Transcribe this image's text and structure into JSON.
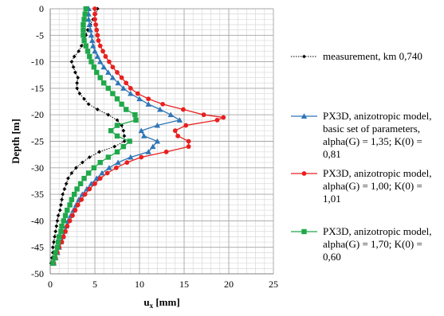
{
  "chart_data": {
    "type": "line",
    "xlabel": "u",
    "xlabel_sub": "x",
    "xlabel_unit": " [mm]",
    "ylabel": "Depth [m]",
    "xlim": [
      0,
      25
    ],
    "ylim": [
      -50,
      0
    ],
    "x_ticks": [
      0,
      5,
      10,
      15,
      20,
      25
    ],
    "y_ticks": [
      0,
      -5,
      -10,
      -15,
      -20,
      -25,
      -30,
      -35,
      -40,
      -45,
      -50
    ],
    "grid": true,
    "legend_position": "right",
    "series": [
      {
        "name": "measurement, km 0,740",
        "name_lines": [
          "measurement, km 0,740"
        ],
        "color": "#000000",
        "marker": "diamond",
        "dashed": true,
        "points": [
          [
            5.3,
            0
          ],
          [
            5.1,
            -1
          ],
          [
            4.8,
            -2
          ],
          [
            4.5,
            -3
          ],
          [
            4.2,
            -4
          ],
          [
            4.0,
            -5
          ],
          [
            3.8,
            -6
          ],
          [
            3.5,
            -7
          ],
          [
            3.2,
            -8
          ],
          [
            2.7,
            -9
          ],
          [
            2.4,
            -10
          ],
          [
            2.6,
            -11
          ],
          [
            2.8,
            -12
          ],
          [
            3.1,
            -13
          ],
          [
            3.0,
            -14
          ],
          [
            3.0,
            -15
          ],
          [
            3.3,
            -16
          ],
          [
            3.8,
            -17
          ],
          [
            4.3,
            -18
          ],
          [
            5.3,
            -19
          ],
          [
            6.5,
            -20
          ],
          [
            7.5,
            -21
          ],
          [
            8.0,
            -22
          ],
          [
            8.2,
            -23
          ],
          [
            8.3,
            -24
          ],
          [
            8.3,
            -25
          ],
          [
            7.2,
            -26
          ],
          [
            5.5,
            -27
          ],
          [
            4.4,
            -28
          ],
          [
            3.6,
            -29
          ],
          [
            2.9,
            -30
          ],
          [
            2.4,
            -31
          ],
          [
            2.0,
            -32
          ],
          [
            1.8,
            -33
          ],
          [
            1.6,
            -34
          ],
          [
            1.4,
            -35
          ],
          [
            1.3,
            -36
          ],
          [
            1.2,
            -37
          ],
          [
            1.1,
            -38
          ],
          [
            0.9,
            -39
          ],
          [
            0.8,
            -40
          ],
          [
            0.7,
            -41
          ],
          [
            0.6,
            -42
          ],
          [
            0.5,
            -43
          ],
          [
            0.4,
            -44
          ],
          [
            0.3,
            -45
          ],
          [
            0.3,
            -46
          ],
          [
            0.2,
            -47
          ],
          [
            0.1,
            -48
          ]
        ]
      },
      {
        "name": "PX3D, anizotropic model, basic set of parameters, alpha(G) = 1,35; K(0) = 0,81",
        "name_lines": [
          "PX3D, anizotropic model,",
          "basic set of parameters,",
          "alpha(G) = 1,35; K(0) =",
          "0,81"
        ],
        "color": "#2e75b6",
        "marker": "triangle",
        "dashed": false,
        "points": [
          [
            4.3,
            0
          ],
          [
            4.3,
            -1
          ],
          [
            4.3,
            -2
          ],
          [
            4.4,
            -3
          ],
          [
            4.5,
            -4
          ],
          [
            4.6,
            -5
          ],
          [
            4.7,
            -6
          ],
          [
            4.8,
            -7
          ],
          [
            5.0,
            -8
          ],
          [
            5.3,
            -9
          ],
          [
            5.6,
            -10
          ],
          [
            6.0,
            -11
          ],
          [
            6.5,
            -12
          ],
          [
            7.0,
            -13
          ],
          [
            7.6,
            -14
          ],
          [
            8.2,
            -15
          ],
          [
            9.0,
            -16
          ],
          [
            10.0,
            -17
          ],
          [
            11.0,
            -18
          ],
          [
            12.3,
            -19
          ],
          [
            13.5,
            -20
          ],
          [
            14.5,
            -21
          ],
          [
            12.0,
            -22
          ],
          [
            10.2,
            -23
          ],
          [
            10.5,
            -24
          ],
          [
            12.0,
            -25
          ],
          [
            11.5,
            -26
          ],
          [
            11.0,
            -27
          ],
          [
            9.0,
            -28
          ],
          [
            7.6,
            -29
          ],
          [
            6.6,
            -30
          ],
          [
            5.8,
            -31
          ],
          [
            5.2,
            -32
          ],
          [
            4.6,
            -33
          ],
          [
            4.1,
            -34
          ],
          [
            3.6,
            -35
          ],
          [
            3.2,
            -36
          ],
          [
            2.9,
            -37
          ],
          [
            2.6,
            -38
          ],
          [
            2.3,
            -39
          ],
          [
            2.0,
            -40
          ],
          [
            1.8,
            -41
          ],
          [
            1.6,
            -42
          ],
          [
            1.4,
            -43
          ],
          [
            1.2,
            -44
          ],
          [
            1.0,
            -45
          ],
          [
            0.8,
            -46
          ],
          [
            0.6,
            -47
          ],
          [
            0.4,
            -48
          ]
        ]
      },
      {
        "name": "PX3D, anizotropic model, alpha(G) = 1,00; K(0) = 1,01",
        "name_lines": [
          "PX3D, anizotropic model,",
          "alpha(G) = 1,00; K(0) =",
          "1,01"
        ],
        "color": "#e8201f",
        "marker": "circle",
        "dashed": false,
        "points": [
          [
            5.0,
            0
          ],
          [
            5.0,
            -1
          ],
          [
            5.0,
            -2
          ],
          [
            5.1,
            -3
          ],
          [
            5.2,
            -4
          ],
          [
            5.3,
            -5
          ],
          [
            5.4,
            -6
          ],
          [
            5.6,
            -7
          ],
          [
            5.9,
            -8
          ],
          [
            6.2,
            -9
          ],
          [
            6.6,
            -10
          ],
          [
            7.0,
            -11
          ],
          [
            7.5,
            -12
          ],
          [
            8.0,
            -13
          ],
          [
            8.5,
            -14
          ],
          [
            9.0,
            -15
          ],
          [
            9.8,
            -16
          ],
          [
            11.0,
            -17
          ],
          [
            12.6,
            -18
          ],
          [
            14.9,
            -19
          ],
          [
            17.2,
            -20
          ],
          [
            19.4,
            -20.5
          ],
          [
            18.7,
            -21
          ],
          [
            15.2,
            -22
          ],
          [
            14.0,
            -23
          ],
          [
            14.3,
            -24
          ],
          [
            15.5,
            -25
          ],
          [
            15.5,
            -26
          ],
          [
            13.0,
            -27
          ],
          [
            10.2,
            -28
          ],
          [
            8.6,
            -29
          ],
          [
            7.4,
            -30
          ],
          [
            6.4,
            -31
          ],
          [
            5.6,
            -32
          ],
          [
            5.0,
            -33
          ],
          [
            4.4,
            -34
          ],
          [
            3.9,
            -35
          ],
          [
            3.5,
            -36
          ],
          [
            3.1,
            -37
          ],
          [
            2.8,
            -38
          ],
          [
            2.5,
            -39
          ],
          [
            2.2,
            -40
          ],
          [
            1.9,
            -41
          ],
          [
            1.7,
            -42
          ],
          [
            1.5,
            -43
          ],
          [
            1.3,
            -44
          ],
          [
            1.0,
            -45
          ],
          [
            0.8,
            -46
          ],
          [
            0.6,
            -47
          ],
          [
            0.4,
            -48
          ]
        ]
      },
      {
        "name": "PX3D, anizotropic model, alpha(G) = 1,70; K(0) = 0,60",
        "name_lines": [
          "PX3D, anizotropic model,",
          "alpha(G) = 1,70; K(0) =",
          "0,60"
        ],
        "color": "#1fa84a",
        "marker": "square",
        "dashed": false,
        "points": [
          [
            4.0,
            0
          ],
          [
            3.9,
            -1
          ],
          [
            3.8,
            -2
          ],
          [
            3.7,
            -3
          ],
          [
            3.7,
            -4
          ],
          [
            3.7,
            -5
          ],
          [
            3.8,
            -6
          ],
          [
            4.0,
            -7
          ],
          [
            4.2,
            -8
          ],
          [
            4.4,
            -9
          ],
          [
            4.6,
            -10
          ],
          [
            4.9,
            -11
          ],
          [
            5.2,
            -12
          ],
          [
            5.6,
            -13
          ],
          [
            6.0,
            -14
          ],
          [
            6.5,
            -15
          ],
          [
            7.0,
            -16
          ],
          [
            7.5,
            -17
          ],
          [
            8.0,
            -18
          ],
          [
            8.5,
            -19
          ],
          [
            9.5,
            -20
          ],
          [
            9.6,
            -21
          ],
          [
            7.5,
            -22
          ],
          [
            6.8,
            -23
          ],
          [
            7.5,
            -24
          ],
          [
            8.9,
            -25
          ],
          [
            8.2,
            -26
          ],
          [
            7.5,
            -27
          ],
          [
            6.5,
            -28
          ],
          [
            5.6,
            -29
          ],
          [
            4.9,
            -30
          ],
          [
            4.3,
            -31
          ],
          [
            3.8,
            -32
          ],
          [
            3.4,
            -33
          ],
          [
            3.0,
            -34
          ],
          [
            2.7,
            -35
          ],
          [
            2.4,
            -36
          ],
          [
            2.2,
            -37
          ],
          [
            1.9,
            -38
          ],
          [
            1.7,
            -39
          ],
          [
            1.5,
            -40
          ],
          [
            1.3,
            -41
          ],
          [
            1.2,
            -42
          ],
          [
            1.0,
            -43
          ],
          [
            0.9,
            -44
          ],
          [
            0.8,
            -45
          ],
          [
            0.6,
            -46
          ],
          [
            0.5,
            -47
          ],
          [
            0.3,
            -48
          ]
        ]
      }
    ]
  }
}
